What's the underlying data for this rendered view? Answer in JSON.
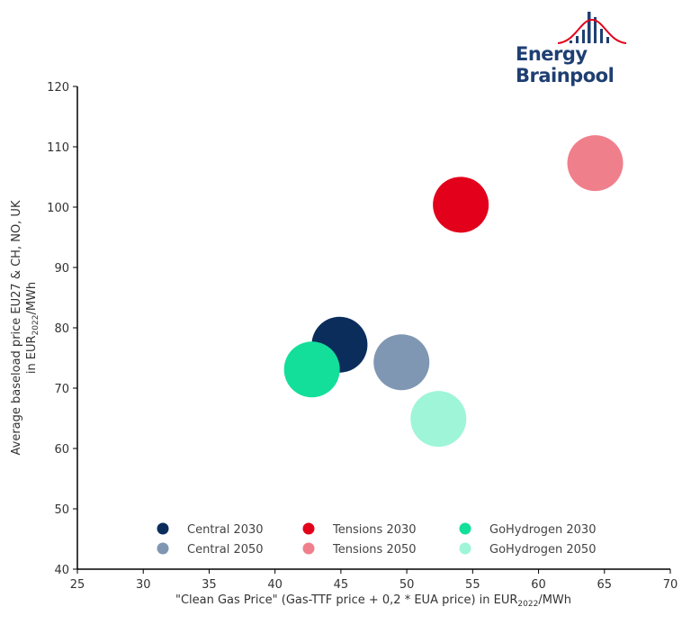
{
  "logo": {
    "text": "Energy Brainpool",
    "colors": {
      "bars": "#1f3f73",
      "curve": "#e2001a"
    }
  },
  "chart_data": {
    "type": "scatter",
    "title": "",
    "xlabel": {
      "prefix": "\"Clean Gas Price\" (Gas-TTF price + 0,2 * EUA price) in EUR",
      "sub": "2022",
      "suffix": "/MWh"
    },
    "ylabel": {
      "line1": "Average baseload price EU27 & CH, NO, UK",
      "line2_prefix": "in EUR",
      "line2_sub": "2022",
      "line2_suffix": "/MWh"
    },
    "xlim": [
      25,
      70
    ],
    "ylim": [
      40,
      120
    ],
    "xticks": [
      25,
      30,
      35,
      40,
      45,
      50,
      55,
      60,
      65,
      70
    ],
    "yticks": [
      40,
      50,
      60,
      70,
      80,
      90,
      100,
      110,
      120
    ],
    "grid": false,
    "legend_position": "bottom-inside",
    "series": [
      {
        "name": "Central 2030",
        "color": "#0b2d5b",
        "x": 44.9,
        "y": 77.2
      },
      {
        "name": "Central 2050",
        "color": "#7f97b2",
        "x": 49.6,
        "y": 74.3
      },
      {
        "name": "Tensions 2030",
        "color": "#e2001a",
        "x": 54.1,
        "y": 100.4
      },
      {
        "name": "Tensions 2050",
        "color": "#f07f8c",
        "x": 64.3,
        "y": 107.3
      },
      {
        "name": "GoHydrogen 2030",
        "color": "#14df9a",
        "x": 42.8,
        "y": 73.1
      },
      {
        "name": "GoHydrogen 2050",
        "color": "#9ff5d7",
        "x": 52.4,
        "y": 64.9
      }
    ]
  }
}
